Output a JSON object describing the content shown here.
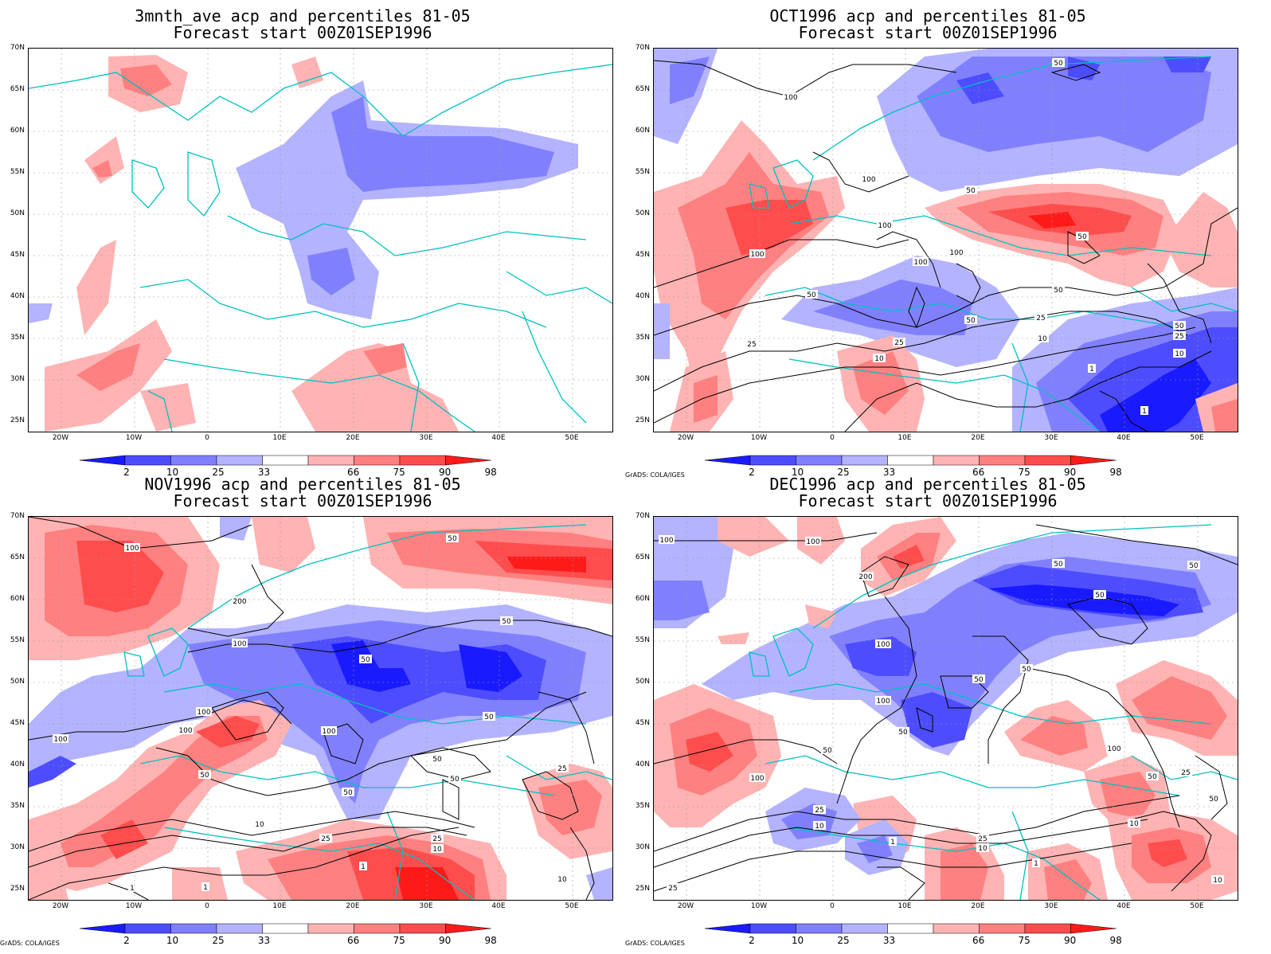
{
  "panels": [
    {
      "title1": "3mnth_ave acp and percentiles 81-05",
      "title2": "Forecast start 00Z01SEP1996",
      "credit": ""
    },
    {
      "title1": "OCT1996 acp and percentiles 81-05",
      "title2": "Forecast start 00Z01SEP1996",
      "credit": "GrADS: COLA/IGES"
    },
    {
      "title1": "NOV1996 acp and percentiles 81-05",
      "title2": "Forecast start 00Z01SEP1996",
      "credit": "GrADS: COLA/IGES"
    },
    {
      "title1": "DEC1996 acp and percentiles 81-05",
      "title2": "Forecast start 00Z01SEP1996",
      "credit": "GrADS: COLA/IGES"
    }
  ],
  "lat_labels": [
    "70N",
    "65N",
    "60N",
    "55N",
    "50N",
    "45N",
    "40N",
    "35N",
    "30N",
    "25N"
  ],
  "lon_labels": [
    "20W",
    "10W",
    "0",
    "10E",
    "20E",
    "30E",
    "40E",
    "50E"
  ],
  "colorbar": {
    "labels": [
      "2",
      "10",
      "25",
      "33",
      "66",
      "75",
      "90",
      "98"
    ],
    "colors": [
      "#1a1aff",
      "#4d4dff",
      "#8080ff",
      "#b3b3ff",
      "#ffffff",
      "#ffb3b3",
      "#ff8080",
      "#ff4d4d",
      "#ff1a1a"
    ]
  },
  "contour_labels": {
    "oct": [
      "100",
      "100",
      "100",
      "100",
      "100",
      "100",
      "50",
      "50",
      "50",
      "50",
      "50",
      "50",
      "50",
      "25",
      "25",
      "25",
      "25",
      "10",
      "10",
      "10",
      "1",
      "1"
    ],
    "nov": [
      "100",
      "100",
      "100",
      "100",
      "100",
      "100",
      "200",
      "50",
      "50",
      "50",
      "50",
      "50",
      "50",
      "50",
      "50",
      "25",
      "25",
      "25",
      "10",
      "10",
      "10",
      "1",
      "1",
      "1"
    ],
    "dec": [
      "100",
      "100",
      "100",
      "100",
      "100",
      "100",
      "200",
      "50",
      "50",
      "50",
      "50",
      "50",
      "50",
      "50",
      "50",
      "50",
      "25",
      "25",
      "25",
      "25",
      "10",
      "10",
      "10",
      "10",
      "1",
      "1"
    ]
  }
}
